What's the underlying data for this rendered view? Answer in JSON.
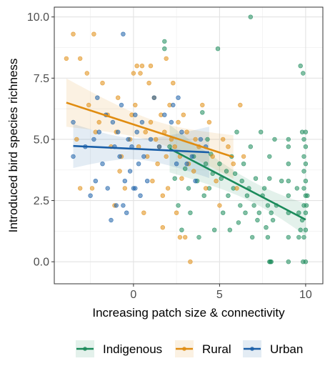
{
  "chart_data": {
    "type": "scatter",
    "title": "",
    "xlabel": "Increasing patch size & connectivity",
    "ylabel": "Introduced bird species richness",
    "xlim": [
      -4.6,
      11.0
    ],
    "ylim": [
      -0.9,
      10.4
    ],
    "x_ticks": [
      0,
      5,
      10
    ],
    "y_ticks": [
      0.0,
      2.5,
      5.0,
      7.5,
      10.0
    ],
    "x_tick_labels": [
      "0",
      "5",
      "10"
    ],
    "y_tick_labels": [
      "0.0",
      "2.5",
      "5.0",
      "7.5",
      "10.0"
    ],
    "grid": true,
    "legend_position": "bottom",
    "series": [
      {
        "name": "Indigenous",
        "color": "#1a8a5a",
        "points": [
          [
            1.8,
            9.0
          ],
          [
            1.8,
            8.7
          ],
          [
            2.1,
            4.7
          ],
          [
            2.4,
            3.4
          ],
          [
            2.6,
            2.3
          ],
          [
            2.8,
            1.3
          ],
          [
            3.0,
            3.8
          ],
          [
            3.2,
            3.0
          ],
          [
            3.3,
            2.0
          ],
          [
            3.5,
            4.3
          ],
          [
            3.7,
            3.3
          ],
          [
            3.8,
            1.0
          ],
          [
            4.0,
            6.1
          ],
          [
            4.1,
            2.7
          ],
          [
            4.2,
            4.0
          ],
          [
            4.3,
            5.0
          ],
          [
            4.4,
            3.0
          ],
          [
            4.5,
            4.4
          ],
          [
            4.6,
            3.6
          ],
          [
            4.7,
            1.3
          ],
          [
            4.9,
            8.7
          ],
          [
            5.0,
            4.0
          ],
          [
            5.1,
            3.4
          ],
          [
            5.2,
            2.0
          ],
          [
            5.4,
            3.7
          ],
          [
            5.5,
            2.7
          ],
          [
            5.6,
            1.3
          ],
          [
            5.7,
            4.3
          ],
          [
            5.8,
            3.0
          ],
          [
            5.9,
            3.6
          ],
          [
            6.0,
            5.3
          ],
          [
            6.1,
            1.6
          ],
          [
            6.2,
            2.3
          ],
          [
            6.3,
            3.3
          ],
          [
            6.4,
            4.0
          ],
          [
            6.5,
            2.0
          ],
          [
            6.6,
            2.7
          ],
          [
            6.7,
            3.0
          ],
          [
            6.8,
            10.0
          ],
          [
            6.8,
            4.7
          ],
          [
            6.9,
            1.0
          ],
          [
            7.0,
            2.3
          ],
          [
            7.1,
            3.4
          ],
          [
            7.2,
            1.7
          ],
          [
            7.3,
            2.0
          ],
          [
            7.4,
            5.3
          ],
          [
            7.5,
            2.7
          ],
          [
            7.6,
            3.0
          ],
          [
            7.7,
            1.4
          ],
          [
            7.8,
            2.3
          ],
          [
            7.9,
            0.0
          ],
          [
            7.95,
            0.0
          ],
          [
            8.0,
            0.0
          ],
          [
            7.9,
            3.4
          ],
          [
            7.9,
            4.3
          ],
          [
            8.0,
            2.0
          ],
          [
            7.8,
            1.0
          ],
          [
            8.1,
            1.7
          ],
          [
            8.2,
            5.0
          ],
          [
            8.3,
            2.3
          ],
          [
            8.6,
            3.3
          ],
          [
            9.0,
            2.7
          ],
          [
            9.5,
            3.0
          ],
          [
            9.6,
            1.0
          ],
          [
            9.7,
            8.0
          ],
          [
            9.85,
            7.7
          ],
          [
            9.8,
            5.3
          ],
          [
            10.0,
            5.3
          ],
          [
            9.9,
            5.0
          ],
          [
            10.0,
            4.7
          ],
          [
            9.9,
            4.3
          ],
          [
            10.0,
            4.0
          ],
          [
            9.9,
            3.7
          ],
          [
            10.0,
            3.3
          ],
          [
            9.9,
            3.0
          ],
          [
            10.0,
            2.7
          ],
          [
            9.9,
            2.3
          ],
          [
            10.0,
            2.0
          ],
          [
            9.8,
            1.7
          ],
          [
            10.0,
            1.3
          ],
          [
            9.9,
            1.0
          ],
          [
            10.0,
            0.0
          ],
          [
            9.85,
            0.0
          ],
          [
            10.05,
            2.3
          ],
          [
            10.1,
            2.7
          ],
          [
            9.6,
            2.0
          ],
          [
            9.7,
            1.3
          ],
          [
            9.0,
            4.7
          ],
          [
            9.0,
            4.0
          ],
          [
            9.0,
            3.3
          ],
          [
            9.0,
            5.0
          ],
          [
            9.0,
            2.0
          ],
          [
            9.0,
            1.0
          ],
          [
            9.0,
            0.0
          ]
        ],
        "trend": {
          "x": [
            2.1,
            10.0
          ],
          "y": [
            4.62,
            1.72
          ]
        }
      },
      {
        "name": "Rural",
        "color": "#e08c10",
        "points": [
          [
            -3.9,
            8.3
          ],
          [
            -3.5,
            9.3
          ],
          [
            -3.1,
            8.3
          ],
          [
            -2.3,
            9.3
          ],
          [
            -3.3,
            5.0
          ],
          [
            -3.1,
            3.0
          ],
          [
            -2.7,
            7.7
          ],
          [
            -2.6,
            6.4
          ],
          [
            -2.4,
            3.0
          ],
          [
            -2.2,
            5.3
          ],
          [
            -2.0,
            5.7
          ],
          [
            -1.8,
            7.3
          ],
          [
            -1.5,
            6.0
          ],
          [
            -1.3,
            4.7
          ],
          [
            -1.1,
            2.3
          ],
          [
            -1.0,
            5.3
          ],
          [
            -0.9,
            6.7
          ],
          [
            -0.8,
            3.7
          ],
          [
            -0.7,
            4.3
          ],
          [
            -0.5,
            3.0
          ],
          [
            -0.2,
            5.0
          ],
          [
            -0.1,
            6.0
          ],
          [
            0.0,
            7.7
          ],
          [
            0.1,
            6.4
          ],
          [
            0.2,
            8.0
          ],
          [
            0.3,
            4.7
          ],
          [
            0.4,
            7.7
          ],
          [
            0.5,
            8.0
          ],
          [
            0.6,
            2.0
          ],
          [
            0.7,
            5.3
          ],
          [
            0.8,
            4.3
          ],
          [
            0.9,
            7.3
          ],
          [
            1.0,
            8.0
          ],
          [
            1.0,
            5.7
          ],
          [
            1.1,
            3.3
          ],
          [
            1.2,
            6.7
          ],
          [
            1.3,
            5.0
          ],
          [
            1.4,
            4.0
          ],
          [
            1.5,
            4.7
          ],
          [
            1.6,
            6.0
          ],
          [
            1.7,
            2.7
          ],
          [
            1.8,
            5.3
          ],
          [
            1.9,
            4.3
          ],
          [
            2.0,
            3.0
          ],
          [
            2.1,
            6.4
          ],
          [
            2.2,
            5.0
          ],
          [
            2.3,
            7.3
          ],
          [
            2.4,
            4.7
          ],
          [
            2.5,
            2.0
          ],
          [
            2.6,
            5.7
          ],
          [
            2.7,
            4.3
          ],
          [
            2.8,
            3.4
          ],
          [
            2.9,
            6.0
          ],
          [
            3.0,
            1.0
          ],
          [
            3.1,
            5.3
          ],
          [
            3.2,
            4.0
          ],
          [
            3.3,
            0.0
          ],
          [
            3.5,
            3.7
          ],
          [
            3.6,
            5.0
          ],
          [
            3.8,
            4.7
          ],
          [
            4.0,
            6.4
          ],
          [
            4.2,
            3.0
          ],
          [
            4.4,
            5.7
          ],
          [
            4.6,
            4.3
          ],
          [
            4.8,
            3.3
          ],
          [
            5.0,
            2.3
          ],
          [
            5.2,
            5.0
          ],
          [
            5.5,
            4.7
          ],
          [
            5.8,
            4.0
          ],
          [
            6.0,
            3.0
          ],
          [
            6.2,
            6.4
          ],
          [
            6.4,
            4.3
          ],
          [
            1.7,
            1.4
          ],
          [
            1.9,
            8.3
          ],
          [
            2.7,
            1.0
          ]
        ],
        "trend": {
          "x": [
            -3.9,
            5.8
          ],
          "y": [
            6.5,
            4.28
          ]
        }
      },
      {
        "name": "Urban",
        "color": "#1a5fa8",
        "points": [
          [
            -3.5,
            5.7
          ],
          [
            -3.5,
            4.3
          ],
          [
            -2.8,
            4.7
          ],
          [
            -2.5,
            2.7
          ],
          [
            -2.3,
            5.0
          ],
          [
            -2.2,
            3.3
          ],
          [
            -2.1,
            6.7
          ],
          [
            -2.0,
            5.3
          ],
          [
            -1.8,
            4.0
          ],
          [
            -1.6,
            6.0
          ],
          [
            -1.5,
            3.0
          ],
          [
            -1.3,
            1.7
          ],
          [
            -1.2,
            5.7
          ],
          [
            -1.1,
            4.7
          ],
          [
            -1.0,
            2.3
          ],
          [
            -0.9,
            5.3
          ],
          [
            -0.8,
            4.3
          ],
          [
            -0.7,
            6.4
          ],
          [
            -0.6,
            9.3
          ],
          [
            -0.5,
            3.3
          ],
          [
            -0.4,
            2.0
          ],
          [
            -0.3,
            5.0
          ],
          [
            -0.2,
            3.7
          ],
          [
            -0.1,
            4.7
          ],
          [
            0.0,
            3.0
          ],
          [
            0.1,
            6.0
          ],
          [
            0.2,
            5.3
          ],
          [
            0.3,
            4.0
          ],
          [
            0.4,
            2.7
          ],
          [
            0.5,
            5.7
          ],
          [
            0.6,
            4.3
          ],
          [
            0.8,
            3.3
          ],
          [
            1.0,
            5.0
          ],
          [
            1.2,
            6.7
          ],
          [
            1.5,
            4.7
          ],
          [
            1.8,
            6.0
          ],
          [
            2.2,
            5.7
          ],
          [
            2.3,
            6.4
          ],
          [
            2.5,
            4.0
          ],
          [
            2.6,
            6.7
          ],
          [
            2.8,
            5.3
          ],
          [
            3.1,
            4.0
          ],
          [
            3.4,
            4.3
          ],
          [
            3.6,
            3.3
          ],
          [
            3.9,
            5.0
          ],
          [
            4.2,
            4.7
          ],
          [
            -0.6,
            2.3
          ],
          [
            0.1,
            3.0
          ]
        ],
        "trend": {
          "x": [
            -3.5,
            4.4
          ],
          "y": [
            4.73,
            4.47
          ]
        }
      }
    ],
    "legend": [
      "Indigenous",
      "Rural",
      "Urban"
    ]
  }
}
